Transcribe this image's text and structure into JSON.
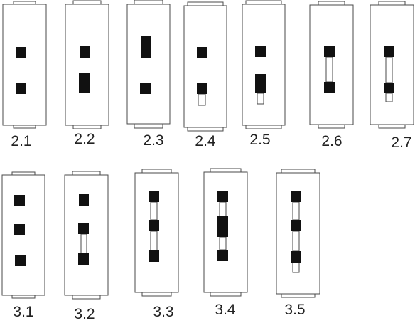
{
  "colors": {
    "outline": "#4a4a4a",
    "block": "#111111",
    "background": "#ffffff"
  },
  "variants": [
    {
      "id": "2.1",
      "label": "2.1"
    },
    {
      "id": "2.2",
      "label": "2.2"
    },
    {
      "id": "2.3",
      "label": "2.3"
    },
    {
      "id": "2.4",
      "label": "2.4"
    },
    {
      "id": "2.5",
      "label": "2.5"
    },
    {
      "id": "2.6",
      "label": "2.6"
    },
    {
      "id": "2.7",
      "label": "2.7"
    },
    {
      "id": "3.1",
      "label": "3.1"
    },
    {
      "id": "3.2",
      "label": "3.2"
    },
    {
      "id": "3.3",
      "label": "3.3"
    },
    {
      "id": "3.4",
      "label": "3.4"
    },
    {
      "id": "3.5",
      "label": "3.5"
    }
  ]
}
